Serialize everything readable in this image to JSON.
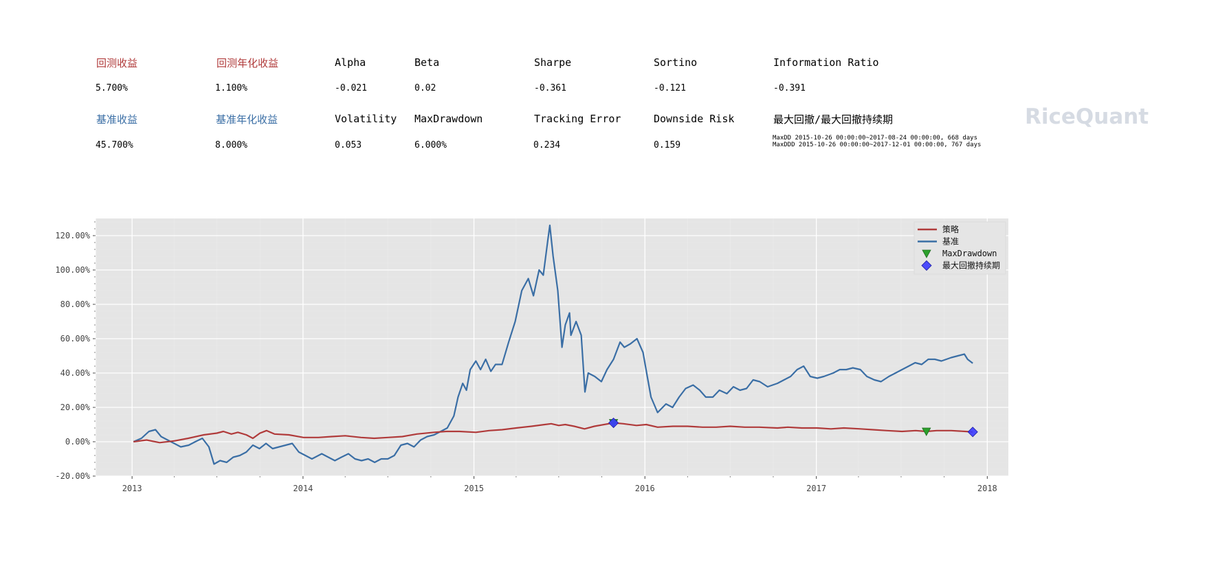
{
  "metrics": {
    "row1": [
      {
        "label": "回测收益",
        "value": "5.700%",
        "color": "#b03a3a"
      },
      {
        "label": "回测年化收益",
        "value": "1.100%",
        "color": "#b03a3a"
      },
      {
        "label": "Alpha",
        "value": "-0.021"
      },
      {
        "label": "Beta",
        "value": "0.02"
      },
      {
        "label": "Sharpe",
        "value": "-0.361"
      },
      {
        "label": "Sortino",
        "value": "-0.121"
      },
      {
        "label": "Information Ratio",
        "value": "-0.391"
      }
    ],
    "row2": [
      {
        "label": "基准收益",
        "value": "45.700%",
        "color": "#3a6ea5"
      },
      {
        "label": "基准年化收益",
        "value": "8.000%",
        "color": "#3a6ea5"
      },
      {
        "label": "Volatility",
        "value": "0.053"
      },
      {
        "label": "MaxDrawdown",
        "value": "6.000%"
      },
      {
        "label": "Tracking Error",
        "value": "0.234"
      },
      {
        "label": "Downside Risk",
        "value": "0.159"
      },
      {
        "label": "最大回撤/最大回撤持续期",
        "value_line1": "MaxDD  2015-10-26 00:00:00~2017-08-24 00:00:00, 668 days",
        "value_line2": "MaxDDD 2015-10-26 00:00:00~2017-12-01 00:00:00, 767 days"
      }
    ]
  },
  "logo_text": "RiceQuant",
  "chart_data": {
    "type": "line",
    "x_ticks": [
      "2013",
      "2014",
      "2015",
      "2016",
      "2017",
      "2018"
    ],
    "y_ticks": [
      "-20.00%",
      "0.00%",
      "20.00%",
      "40.00%",
      "60.00%",
      "80.00%",
      "100.00%",
      "120.00%"
    ],
    "ylim": [
      -20,
      130
    ],
    "xlim": [
      "2012-10-15",
      "2018-02-15"
    ],
    "grid": true,
    "legend_position": "top-right",
    "series": [
      {
        "name": "策略",
        "color": "#b03a3a",
        "points": [
          [
            "2013-01-04",
            0
          ],
          [
            "2013-02-01",
            1
          ],
          [
            "2013-03-01",
            -0.5
          ],
          [
            "2013-04-01",
            0.5
          ],
          [
            "2013-05-01",
            2
          ],
          [
            "2013-06-03",
            4
          ],
          [
            "2013-07-01",
            5
          ],
          [
            "2013-07-15",
            6
          ],
          [
            "2013-08-01",
            4.5
          ],
          [
            "2013-08-15",
            5.5
          ],
          [
            "2013-09-02",
            4
          ],
          [
            "2013-09-16",
            2
          ],
          [
            "2013-10-01",
            5
          ],
          [
            "2013-10-15",
            6.5
          ],
          [
            "2013-11-01",
            4.5
          ],
          [
            "2013-12-02",
            4
          ],
          [
            "2014-01-02",
            2.5
          ],
          [
            "2014-02-03",
            2.5
          ],
          [
            "2014-03-03",
            3
          ],
          [
            "2014-04-01",
            3.5
          ],
          [
            "2014-05-05",
            2.5
          ],
          [
            "2014-06-02",
            2
          ],
          [
            "2014-07-01",
            2.5
          ],
          [
            "2014-08-01",
            3
          ],
          [
            "2014-09-01",
            4.5
          ],
          [
            "2014-10-08",
            5.5
          ],
          [
            "2014-11-03",
            6
          ],
          [
            "2014-12-01",
            6
          ],
          [
            "2015-01-05",
            5.5
          ],
          [
            "2015-02-02",
            6.5
          ],
          [
            "2015-03-02",
            7
          ],
          [
            "2015-04-01",
            8
          ],
          [
            "2015-05-04",
            9
          ],
          [
            "2015-06-01",
            10
          ],
          [
            "2015-06-15",
            10.5
          ],
          [
            "2015-07-01",
            9.5
          ],
          [
            "2015-07-15",
            10
          ],
          [
            "2015-08-03",
            9
          ],
          [
            "2015-08-25",
            7.5
          ],
          [
            "2015-09-15",
            9
          ],
          [
            "2015-10-26",
            11
          ],
          [
            "2015-11-16",
            10.5
          ],
          [
            "2015-12-14",
            9.5
          ],
          [
            "2016-01-04",
            10
          ],
          [
            "2016-01-28",
            8.5
          ],
          [
            "2016-03-01",
            9
          ],
          [
            "2016-04-01",
            9
          ],
          [
            "2016-05-03",
            8.5
          ],
          [
            "2016-06-01",
            8.5
          ],
          [
            "2016-07-01",
            9
          ],
          [
            "2016-08-01",
            8.5
          ],
          [
            "2016-09-01",
            8.5
          ],
          [
            "2016-10-10",
            8
          ],
          [
            "2016-11-01",
            8.5
          ],
          [
            "2016-12-01",
            8
          ],
          [
            "2017-01-03",
            8
          ],
          [
            "2017-02-01",
            7.5
          ],
          [
            "2017-03-01",
            8
          ],
          [
            "2017-04-05",
            7.5
          ],
          [
            "2017-05-02",
            7
          ],
          [
            "2017-06-01",
            6.5
          ],
          [
            "2017-07-03",
            6
          ],
          [
            "2017-08-01",
            6.5
          ],
          [
            "2017-08-24",
            6
          ],
          [
            "2017-09-15",
            6.5
          ],
          [
            "2017-10-16",
            6.5
          ],
          [
            "2017-11-15",
            6
          ],
          [
            "2017-12-01",
            5.7
          ]
        ]
      },
      {
        "name": "基准",
        "color": "#3a6ea5",
        "points": [
          [
            "2013-01-04",
            0
          ],
          [
            "2013-01-21",
            2
          ],
          [
            "2013-02-06",
            6
          ],
          [
            "2013-02-20",
            7
          ],
          [
            "2013-03-04",
            3
          ],
          [
            "2013-03-18",
            1
          ],
          [
            "2013-04-01",
            -1
          ],
          [
            "2013-04-15",
            -3
          ],
          [
            "2013-05-02",
            -2
          ],
          [
            "2013-05-16",
            0
          ],
          [
            "2013-05-31",
            2
          ],
          [
            "2013-06-14",
            -3
          ],
          [
            "2013-06-25",
            -13
          ],
          [
            "2013-07-08",
            -11
          ],
          [
            "2013-07-22",
            -12
          ],
          [
            "2013-08-05",
            -9
          ],
          [
            "2013-08-19",
            -8
          ],
          [
            "2013-09-02",
            -6
          ],
          [
            "2013-09-16",
            -2
          ],
          [
            "2013-09-30",
            -4
          ],
          [
            "2013-10-14",
            -1
          ],
          [
            "2013-10-28",
            -4
          ],
          [
            "2013-11-11",
            -3
          ],
          [
            "2013-11-25",
            -2
          ],
          [
            "2013-12-09",
            -1
          ],
          [
            "2013-12-23",
            -6
          ],
          [
            "2014-01-06",
            -8
          ],
          [
            "2014-01-20",
            -10
          ],
          [
            "2014-02-10",
            -7
          ],
          [
            "2014-02-24",
            -9
          ],
          [
            "2014-03-10",
            -11
          ],
          [
            "2014-03-24",
            -9
          ],
          [
            "2014-04-08",
            -7
          ],
          [
            "2014-04-22",
            -10
          ],
          [
            "2014-05-06",
            -11
          ],
          [
            "2014-05-20",
            -10
          ],
          [
            "2014-06-03",
            -12
          ],
          [
            "2014-06-17",
            -10
          ],
          [
            "2014-07-01",
            -10
          ],
          [
            "2014-07-15",
            -8
          ],
          [
            "2014-07-29",
            -2
          ],
          [
            "2014-08-12",
            -1
          ],
          [
            "2014-08-26",
            -3
          ],
          [
            "2014-09-09",
            1
          ],
          [
            "2014-09-23",
            3
          ],
          [
            "2014-10-08",
            4
          ],
          [
            "2014-10-22",
            6
          ],
          [
            "2014-11-05",
            8
          ],
          [
            "2014-11-19",
            15
          ],
          [
            "2014-11-28",
            26
          ],
          [
            "2014-12-08",
            34
          ],
          [
            "2014-12-16",
            30
          ],
          [
            "2014-12-24",
            42
          ],
          [
            "2015-01-05",
            47
          ],
          [
            "2015-01-15",
            42
          ],
          [
            "2015-01-26",
            48
          ],
          [
            "2015-02-06",
            41
          ],
          [
            "2015-02-16",
            45
          ],
          [
            "2015-03-02",
            45
          ],
          [
            "2015-03-16",
            58
          ],
          [
            "2015-03-30",
            70
          ],
          [
            "2015-04-13",
            88
          ],
          [
            "2015-04-27",
            95
          ],
          [
            "2015-05-08",
            85
          ],
          [
            "2015-05-20",
            100
          ],
          [
            "2015-05-29",
            97
          ],
          [
            "2015-06-08",
            118
          ],
          [
            "2015-06-12",
            126
          ],
          [
            "2015-06-19",
            108
          ],
          [
            "2015-06-29",
            88
          ],
          [
            "2015-07-08",
            55
          ],
          [
            "2015-07-15",
            68
          ],
          [
            "2015-07-24",
            75
          ],
          [
            "2015-07-27",
            62
          ],
          [
            "2015-08-07",
            70
          ],
          [
            "2015-08-18",
            62
          ],
          [
            "2015-08-26",
            29
          ],
          [
            "2015-09-02",
            40
          ],
          [
            "2015-09-16",
            38
          ],
          [
            "2015-09-30",
            35
          ],
          [
            "2015-10-12",
            42
          ],
          [
            "2015-10-26",
            48
          ],
          [
            "2015-11-09",
            58
          ],
          [
            "2015-11-18",
            55
          ],
          [
            "2015-12-01",
            57
          ],
          [
            "2015-12-15",
            60
          ],
          [
            "2015-12-28",
            52
          ],
          [
            "2016-01-06",
            38
          ],
          [
            "2016-01-14",
            26
          ],
          [
            "2016-01-28",
            17
          ],
          [
            "2016-02-15",
            22
          ],
          [
            "2016-02-29",
            20
          ],
          [
            "2016-03-14",
            26
          ],
          [
            "2016-03-28",
            31
          ],
          [
            "2016-04-13",
            33
          ],
          [
            "2016-04-27",
            30
          ],
          [
            "2016-05-10",
            26
          ],
          [
            "2016-05-25",
            26
          ],
          [
            "2016-06-08",
            30
          ],
          [
            "2016-06-24",
            28
          ],
          [
            "2016-07-08",
            32
          ],
          [
            "2016-07-22",
            30
          ],
          [
            "2016-08-05",
            31
          ],
          [
            "2016-08-19",
            36
          ],
          [
            "2016-09-02",
            35
          ],
          [
            "2016-09-19",
            32
          ],
          [
            "2016-10-10",
            34
          ],
          [
            "2016-10-24",
            36
          ],
          [
            "2016-11-07",
            38
          ],
          [
            "2016-11-21",
            42
          ],
          [
            "2016-12-05",
            44
          ],
          [
            "2016-12-19",
            38
          ],
          [
            "2017-01-03",
            37
          ],
          [
            "2017-01-17",
            38
          ],
          [
            "2017-02-06",
            40
          ],
          [
            "2017-02-20",
            42
          ],
          [
            "2017-03-06",
            42
          ],
          [
            "2017-03-20",
            43
          ],
          [
            "2017-04-05",
            42
          ],
          [
            "2017-04-19",
            38
          ],
          [
            "2017-05-05",
            36
          ],
          [
            "2017-05-19",
            35
          ],
          [
            "2017-06-05",
            38
          ],
          [
            "2017-06-19",
            40
          ],
          [
            "2017-07-03",
            42
          ],
          [
            "2017-07-17",
            44
          ],
          [
            "2017-07-31",
            46
          ],
          [
            "2017-08-14",
            45
          ],
          [
            "2017-08-28",
            48
          ],
          [
            "2017-09-11",
            48
          ],
          [
            "2017-09-25",
            47
          ],
          [
            "2017-10-16",
            49
          ],
          [
            "2017-10-30",
            50
          ],
          [
            "2017-11-13",
            51
          ],
          [
            "2017-11-20",
            48
          ],
          [
            "2017-12-01",
            45.7
          ]
        ]
      }
    ],
    "markers": [
      {
        "name": "MaxDrawdown",
        "shape": "triangle-down",
        "color": "#2ca02c",
        "points": [
          [
            "2015-10-26",
            11
          ],
          [
            "2017-08-24",
            6
          ]
        ]
      },
      {
        "name": "最大回撤持续期",
        "shape": "diamond",
        "color": "#3b3bff",
        "points": [
          [
            "2015-10-26",
            11
          ],
          [
            "2017-12-01",
            5.7
          ]
        ]
      }
    ]
  }
}
